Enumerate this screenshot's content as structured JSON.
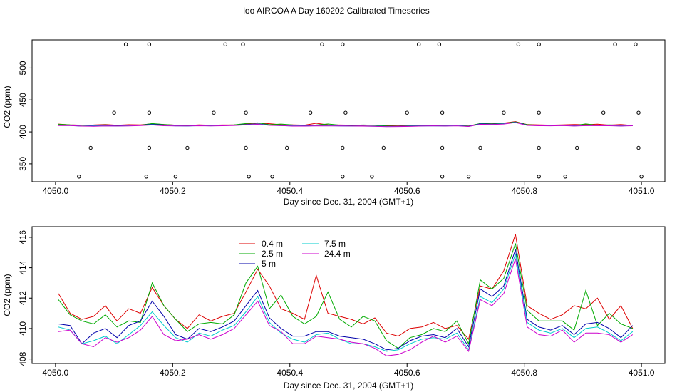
{
  "title": "loo AIRCOA A  Day 160202  Calibrated Timeseries",
  "chart_data": [
    {
      "type": "scatter",
      "xlabel": "Day since Dec. 31, 2004 (GMT+1)",
      "ylabel": "CO2 (ppm)",
      "xlim": [
        4049.96,
        4051.04
      ],
      "ylim": [
        322,
        544
      ],
      "xticks": [
        "4050.0",
        "4050.2",
        "4050.4",
        "4050.6",
        "4050.8",
        "4051.0"
      ],
      "yticks": [
        "350",
        "400",
        "450",
        "500"
      ],
      "colors": {
        "0.4 m": "#dd0000",
        "2.5 m": "#00aa00",
        "5 m": "#0000aa",
        "7.5 m": "#00cccc",
        "24.4 m": "#cc00cc"
      },
      "line_x": [
        4050.005,
        4050.025,
        4050.045,
        4050.065,
        4050.085,
        4050.105,
        4050.125,
        4050.145,
        4050.165,
        4050.185,
        4050.205,
        4050.225,
        4050.245,
        4050.265,
        4050.285,
        4050.305,
        4050.325,
        4050.345,
        4050.365,
        4050.385,
        4050.405,
        4050.425,
        4050.445,
        4050.465,
        4050.485,
        4050.505,
        4050.525,
        4050.545,
        4050.565,
        4050.585,
        4050.605,
        4050.625,
        4050.645,
        4050.665,
        4050.685,
        4050.705,
        4050.725,
        4050.745,
        4050.765,
        4050.785,
        4050.805,
        4050.825,
        4050.845,
        4050.865,
        4050.885,
        4050.905,
        4050.925,
        4050.945,
        4050.965,
        4050.985
      ],
      "series": [
        {
          "values": [
            412.3,
            411.0,
            410.6,
            410.8,
            411.5,
            410.5,
            411.3,
            411.0,
            412.7,
            411.5,
            410.6,
            410.0,
            410.9,
            410.5,
            410.8,
            411.0,
            412.4,
            413.9,
            412.8,
            411.3,
            411.0,
            410.6,
            413.5,
            411.0,
            410.8,
            410.6,
            410.3,
            410.7,
            409.7,
            409.5,
            410.0,
            410.1,
            410.4,
            410.0,
            410.2,
            409.3,
            412.8,
            412.6,
            413.8,
            416.2,
            411.5,
            411.0,
            410.6,
            410.9,
            411.5,
            411.3,
            412.0,
            410.6,
            411.5,
            410.0
          ]
        },
        {
          "values": [
            411.9,
            410.9,
            410.5,
            410.3,
            410.9,
            410.1,
            410.5,
            410.4,
            413.0,
            411.5,
            410.6,
            409.8,
            410.3,
            410.4,
            410.3,
            410.9,
            413.0,
            414.1,
            411.3,
            412.2,
            410.8,
            410.3,
            410.8,
            412.4,
            410.6,
            410.1,
            410.8,
            410.5,
            409.2,
            408.7,
            409.4,
            409.6,
            410.0,
            409.8,
            410.5,
            409.0,
            413.2,
            412.6,
            413.3,
            415.6,
            411.2,
            410.5,
            410.5,
            410.5,
            409.9,
            412.5,
            410.2,
            411.0,
            410.3,
            410.0
          ]
        },
        {
          "values": [
            410.3,
            410.2,
            409.0,
            409.7,
            410.0,
            409.4,
            410.2,
            410.5,
            411.8,
            410.8,
            409.6,
            409.3,
            410.0,
            409.8,
            410.1,
            410.5,
            411.5,
            412.5,
            410.7,
            410.0,
            409.5,
            409.5,
            409.8,
            409.8,
            409.5,
            409.4,
            409.3,
            409.0,
            408.6,
            408.7,
            409.2,
            409.5,
            409.6,
            409.4,
            410.0,
            408.8,
            412.6,
            412.1,
            412.8,
            415.2,
            410.6,
            410.1,
            409.9,
            410.2,
            409.6,
            410.3,
            410.4,
            410.0,
            409.4,
            410.2
          ]
        },
        {
          "values": [
            410.1,
            409.9,
            409.0,
            409.2,
            409.5,
            409.0,
            409.6,
            410.2,
            411.1,
            410.2,
            409.4,
            409.1,
            409.7,
            409.5,
            409.9,
            410.2,
            411.1,
            412.1,
            410.4,
            409.7,
            409.3,
            409.1,
            409.6,
            409.7,
            409.3,
            409.0,
            409.0,
            408.8,
            408.5,
            408.6,
            409.0,
            409.3,
            409.4,
            409.3,
            409.7,
            408.6,
            412.1,
            411.7,
            412.6,
            414.9,
            410.4,
            409.9,
            409.7,
            410.0,
            409.4,
            410.0,
            410.1,
            409.7,
            409.2,
            409.8
          ]
        },
        {
          "values": [
            409.8,
            409.9,
            409.0,
            408.8,
            409.4,
            409.1,
            409.4,
            409.9,
            410.8,
            409.6,
            409.2,
            409.3,
            409.6,
            409.3,
            409.6,
            410.0,
            410.9,
            411.8,
            410.2,
            409.8,
            409.0,
            409.0,
            409.5,
            409.4,
            409.3,
            409.1,
            409.0,
            408.7,
            408.2,
            408.3,
            408.6,
            409.1,
            409.5,
            409.1,
            409.5,
            408.5,
            411.9,
            411.5,
            412.3,
            414.6,
            410.1,
            409.6,
            409.5,
            409.9,
            409.1,
            409.7,
            409.7,
            409.6,
            409.1,
            409.6
          ]
        }
      ],
      "marker_rows": [
        {
          "y": 537,
          "x": [
            4050.12,
            4050.16,
            4050.29,
            4050.32,
            4050.455,
            4050.49,
            4050.62,
            4050.655,
            4050.79,
            4050.825,
            4050.955,
            4050.99
          ]
        },
        {
          "y": 430,
          "x": [
            4050.1,
            4050.16,
            4050.27,
            4050.325,
            4050.435,
            4050.495,
            4050.6,
            4050.66,
            4050.765,
            4050.825,
            4050.935,
            4050.995
          ]
        },
        {
          "y": 375,
          "x": [
            4050.06,
            4050.16,
            4050.225,
            4050.325,
            4050.395,
            4050.49,
            4050.56,
            4050.66,
            4050.725,
            4050.825,
            4050.89,
            4050.995
          ]
        },
        {
          "y": 330,
          "x": [
            4050.04,
            4050.155,
            4050.205,
            4050.33,
            4050.37,
            4050.49,
            4050.54,
            4050.66,
            4050.705,
            4050.825,
            4050.87,
            4051.0
          ]
        }
      ]
    },
    {
      "type": "line",
      "xlabel": "Day since Dec. 31, 2004 (GMT+1)",
      "ylabel": "CO2 (ppm)",
      "xlim": [
        4049.96,
        4051.04
      ],
      "ylim": [
        407.7,
        416.7
      ],
      "xticks": [
        "4050.0",
        "4050.2",
        "4050.4",
        "4050.6",
        "4050.8",
        "4051.0"
      ],
      "yticks": [
        "408",
        "410",
        "412",
        "414",
        "416"
      ],
      "legend_position": "top-left",
      "series": [
        {
          "name": "0.4 m",
          "color": "#dd0000"
        },
        {
          "name": "2.5 m",
          "color": "#00aa00"
        },
        {
          "name": "5 m",
          "color": "#0000aa"
        },
        {
          "name": "7.5 m",
          "color": "#00cccc"
        },
        {
          "name": "24.4 m",
          "color": "#cc00cc"
        }
      ]
    }
  ]
}
